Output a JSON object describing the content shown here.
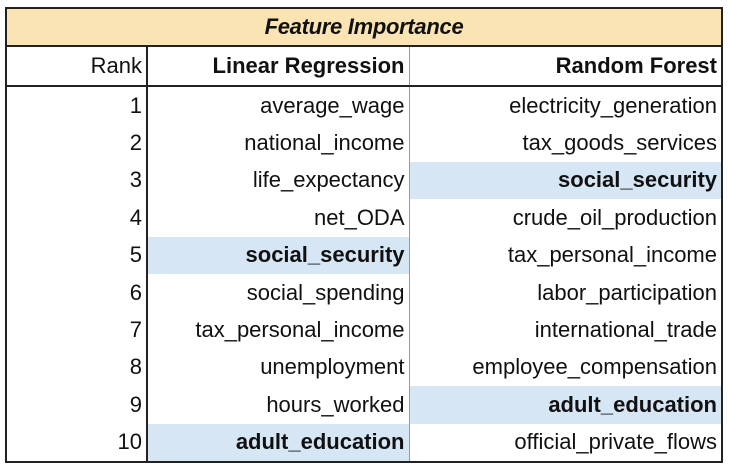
{
  "table": {
    "title": "Feature Importance",
    "headers": {
      "rank": "Rank",
      "linear_regression": "Linear Regression",
      "random_forest": "Random Forest"
    },
    "highlight_color": "#d7e6f5",
    "title_color": "#fbe4b4",
    "rows": [
      {
        "rank": "1",
        "linear_regression": "average_wage",
        "random_forest": "electricity_generation",
        "lr_highlight": false,
        "rf_highlight": false
      },
      {
        "rank": "2",
        "linear_regression": "national_income",
        "random_forest": "tax_goods_services",
        "lr_highlight": false,
        "rf_highlight": false
      },
      {
        "rank": "3",
        "linear_regression": "life_expectancy",
        "random_forest": "social_security",
        "lr_highlight": false,
        "rf_highlight": true
      },
      {
        "rank": "4",
        "linear_regression": "net_ODA",
        "random_forest": "crude_oil_production",
        "lr_highlight": false,
        "rf_highlight": false
      },
      {
        "rank": "5",
        "linear_regression": "social_security",
        "random_forest": "tax_personal_income",
        "lr_highlight": true,
        "rf_highlight": false
      },
      {
        "rank": "6",
        "linear_regression": "social_spending",
        "random_forest": "labor_participation",
        "lr_highlight": false,
        "rf_highlight": false
      },
      {
        "rank": "7",
        "linear_regression": "tax_personal_income",
        "random_forest": "international_trade",
        "lr_highlight": false,
        "rf_highlight": false
      },
      {
        "rank": "8",
        "linear_regression": "unemployment",
        "random_forest": "employee_compensation",
        "lr_highlight": false,
        "rf_highlight": false
      },
      {
        "rank": "9",
        "linear_regression": "hours_worked",
        "random_forest": "adult_education",
        "lr_highlight": false,
        "rf_highlight": true
      },
      {
        "rank": "10",
        "linear_regression": "adult_education",
        "random_forest": "official_private_flows",
        "lr_highlight": true,
        "rf_highlight": false
      }
    ]
  }
}
